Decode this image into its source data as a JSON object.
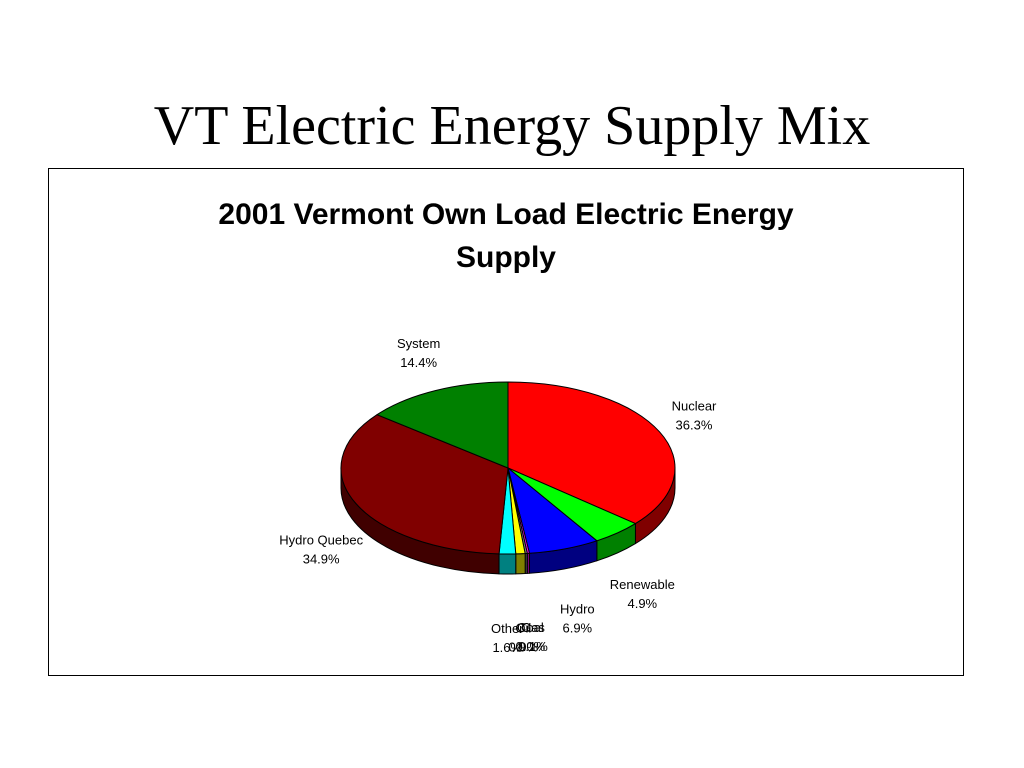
{
  "slide": {
    "title": "VT Electric Energy Supply Mix"
  },
  "chart_data": {
    "type": "pie",
    "title_lines": [
      "2001 Vermont Own Load Electric Energy",
      "Supply"
    ],
    "legend": "none",
    "style": "3d",
    "slices": [
      {
        "name": "Nuclear",
        "value": 36.3,
        "label": "36.3%",
        "color": "#ff0000",
        "side": "#800000"
      },
      {
        "name": "Renewable",
        "value": 4.9,
        "label": "4.9%",
        "color": "#00ff00",
        "side": "#008000"
      },
      {
        "name": "Hydro",
        "value": 6.9,
        "label": "6.9%",
        "color": "#0000ff",
        "side": "#000080"
      },
      {
        "name": "Gas",
        "value": 0.1,
        "label": "0.1%",
        "color": "#ff00ff",
        "side": "#800080"
      },
      {
        "name": "Coal",
        "value": 0.0,
        "label": "0.0%",
        "color": "#808080",
        "side": "#404040"
      },
      {
        "name": "Oil",
        "value": 0.9,
        "label": "0.9%",
        "color": "#ffff00",
        "side": "#808000"
      },
      {
        "name": "Other",
        "value": 1.6,
        "label": "1.6%",
        "color": "#00ffff",
        "side": "#008080"
      },
      {
        "name": "Hydro Quebec",
        "value": 34.9,
        "label": "34.9%",
        "color": "#800000",
        "side": "#400000"
      },
      {
        "name": "System",
        "value": 14.4,
        "label": "14.4%",
        "color": "#008000",
        "side": "#004000"
      }
    ]
  }
}
